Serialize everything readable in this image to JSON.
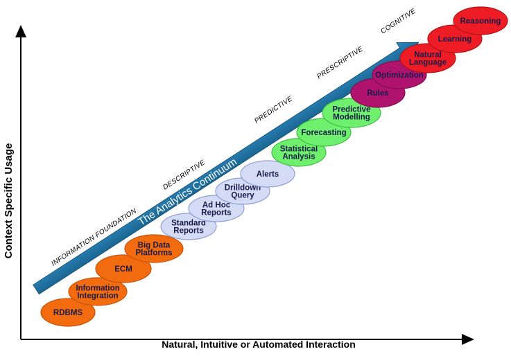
{
  "y_axis_label": "Context Specific Usage",
  "x_axis_label": "Natural, Intuitive or Automated Interaction",
  "arrow_label": "The Analytics Continuum",
  "stages": [
    "INFORMATION FOUNDATION",
    "DESCRIPTIVE",
    "PREDICTIVE",
    "PRESCRIPTIVE",
    "COGNITIVE"
  ],
  "nodes": [
    {
      "label": [
        "RDBMS"
      ],
      "group": "information-foundation"
    },
    {
      "label": [
        "Information",
        "Integration"
      ],
      "group": "information-foundation"
    },
    {
      "label": [
        "ECM"
      ],
      "group": "information-foundation"
    },
    {
      "label": [
        "Big Data",
        "Platforms"
      ],
      "group": "information-foundation"
    },
    {
      "label": [
        "Standard",
        "Reports"
      ],
      "group": "descriptive"
    },
    {
      "label": [
        "Ad Hoc",
        "Reports"
      ],
      "group": "descriptive"
    },
    {
      "label": [
        "Drilldown",
        "Query"
      ],
      "group": "descriptive"
    },
    {
      "label": [
        "Alerts"
      ],
      "group": "descriptive"
    },
    {
      "label": [
        "Statistical",
        "Analysis"
      ],
      "group": "predictive"
    },
    {
      "label": [
        "Forecasting"
      ],
      "group": "predictive"
    },
    {
      "label": [
        "Predictive",
        "Modelling"
      ],
      "group": "predictive"
    },
    {
      "label": [
        "Rules"
      ],
      "group": "prescriptive"
    },
    {
      "label": [
        "Optimization"
      ],
      "group": "prescriptive"
    },
    {
      "label": [
        "Natural",
        "Language"
      ],
      "group": "cognitive"
    },
    {
      "label": [
        "Learning"
      ],
      "group": "cognitive"
    },
    {
      "label": [
        "Reasoning"
      ],
      "group": "cognitive"
    }
  ],
  "colors": {
    "information-foundation": {
      "fill": "#f26b0f",
      "stroke": "#c4520a",
      "text": "#1a1a4a"
    },
    "descriptive": {
      "fill": "#d3dbf5",
      "stroke": "#8f9fd8",
      "text": "#1a1a4a"
    },
    "predictive": {
      "fill": "#6ef06e",
      "stroke": "#3fbf3f",
      "text": "#1a1a4a"
    },
    "prescriptive": {
      "fill": "#b0136e",
      "stroke": "#80104f",
      "text": "#1a1a4a"
    },
    "cognitive": {
      "fill": "#ee1c24",
      "stroke": "#b01418",
      "text": "#1a1a4a"
    },
    "arrow": "#1e6fa0"
  }
}
